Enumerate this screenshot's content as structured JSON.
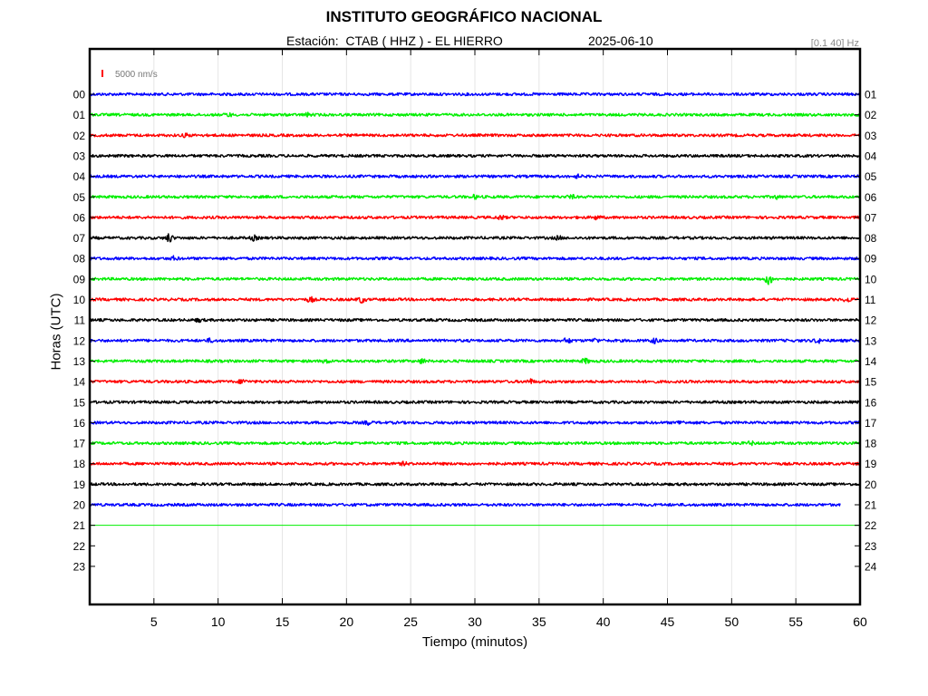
{
  "header": {
    "title": "INSTITUTO GEOGRÁFICO NACIONAL",
    "station_text": "Estación:  CTAB ( HHZ ) - EL HIERRO",
    "date": "2025-06-10",
    "filter": "[0.1 40] Hz"
  },
  "chart_data": {
    "type": "line",
    "title": "INSTITUTO GEOGRÁFICO NACIONAL",
    "xlabel": "Tiempo (minutos)",
    "ylabel": "Horas (UTC)",
    "xlim": [
      0,
      60
    ],
    "x_ticks": [
      5,
      10,
      15,
      20,
      25,
      30,
      35,
      40,
      45,
      50,
      55,
      60
    ],
    "left_tick_labels": [
      "00",
      "01",
      "02",
      "03",
      "04",
      "05",
      "06",
      "07",
      "08",
      "09",
      "10",
      "11",
      "12",
      "13",
      "14",
      "15",
      "16",
      "17",
      "18",
      "19",
      "20",
      "21",
      "22",
      "23"
    ],
    "right_tick_labels": [
      "01",
      "02",
      "03",
      "04",
      "05",
      "06",
      "07",
      "08",
      "09",
      "10",
      "11",
      "12",
      "13",
      "14",
      "15",
      "16",
      "17",
      "18",
      "19",
      "20",
      "21",
      "22",
      "23",
      "24"
    ],
    "scale_bar_label": "5000 nm/s",
    "scale_bar_color": "#ff0000",
    "trace_colors": [
      "#0000ff",
      "#00ee00",
      "#ff0000",
      "#000000"
    ],
    "grid": true,
    "series": [
      {
        "hour": 0,
        "color": "#0000ff",
        "end_minute": 60,
        "events": []
      },
      {
        "hour": 1,
        "color": "#00ee00",
        "end_minute": 60,
        "events": [
          [
            10.8,
            1.6
          ],
          [
            17,
            1.5
          ]
        ]
      },
      {
        "hour": 2,
        "color": "#ff0000",
        "end_minute": 60,
        "events": [
          [
            7.5,
            1.6
          ]
        ]
      },
      {
        "hour": 3,
        "color": "#000000",
        "end_minute": 60,
        "events": []
      },
      {
        "hour": 4,
        "color": "#0000ff",
        "end_minute": 60,
        "events": [
          [
            38,
            1.4
          ]
        ]
      },
      {
        "hour": 5,
        "color": "#00ee00",
        "end_minute": 60,
        "events": [
          [
            30,
            1.6
          ],
          [
            37.5,
            1.8
          ],
          [
            53.5,
            1.5
          ]
        ]
      },
      {
        "hour": 6,
        "color": "#ff0000",
        "end_minute": 60,
        "events": [
          [
            32,
            2.0
          ],
          [
            39.5,
            1.8
          ]
        ]
      },
      {
        "hour": 7,
        "color": "#000000",
        "end_minute": 60,
        "events": [
          [
            6.2,
            4.5
          ],
          [
            12.8,
            2.2
          ],
          [
            36.5,
            1.6
          ]
        ]
      },
      {
        "hour": 8,
        "color": "#0000ff",
        "end_minute": 60,
        "events": [
          [
            6.6,
            1.8
          ]
        ]
      },
      {
        "hour": 9,
        "color": "#00ee00",
        "end_minute": 60,
        "events": [
          [
            52.9,
            6.0
          ]
        ]
      },
      {
        "hour": 10,
        "color": "#ff0000",
        "end_minute": 60,
        "events": [
          [
            17.2,
            2.4
          ],
          [
            21.2,
            3.2
          ],
          [
            59,
            2.4
          ]
        ]
      },
      {
        "hour": 11,
        "color": "#000000",
        "end_minute": 60,
        "events": [
          [
            8.5,
            1.5
          ]
        ]
      },
      {
        "hour": 12,
        "color": "#0000ff",
        "end_minute": 60,
        "events": [
          [
            9.4,
            1.6
          ],
          [
            37.2,
            2.8
          ],
          [
            39.4,
            1.8
          ],
          [
            44,
            2.4
          ],
          [
            56.7,
            2.2
          ]
        ]
      },
      {
        "hour": 13,
        "color": "#00ee00",
        "end_minute": 60,
        "events": [
          [
            18.4,
            1.8
          ],
          [
            25.9,
            2.2
          ],
          [
            38.6,
            2.6
          ]
        ]
      },
      {
        "hour": 14,
        "color": "#ff0000",
        "end_minute": 60,
        "events": [
          [
            11.9,
            2.2
          ],
          [
            34.3,
            2.2
          ]
        ]
      },
      {
        "hour": 15,
        "color": "#000000",
        "end_minute": 60,
        "events": []
      },
      {
        "hour": 16,
        "color": "#0000ff",
        "end_minute": 60,
        "events": [
          [
            21.7,
            1.8
          ],
          [
            46,
            1.7
          ]
        ]
      },
      {
        "hour": 17,
        "color": "#00ee00",
        "end_minute": 60,
        "events": [
          [
            51.5,
            1.5
          ]
        ]
      },
      {
        "hour": 18,
        "color": "#ff0000",
        "end_minute": 60,
        "events": [
          [
            24.5,
            1.4
          ]
        ]
      },
      {
        "hour": 19,
        "color": "#000000",
        "end_minute": 60,
        "events": []
      },
      {
        "hour": 20,
        "color": "#0000ff",
        "end_minute": 58.5,
        "events": []
      },
      {
        "hour": 21,
        "color": "#00ee00",
        "end_minute": 60,
        "events": [],
        "flat": true
      }
    ]
  }
}
